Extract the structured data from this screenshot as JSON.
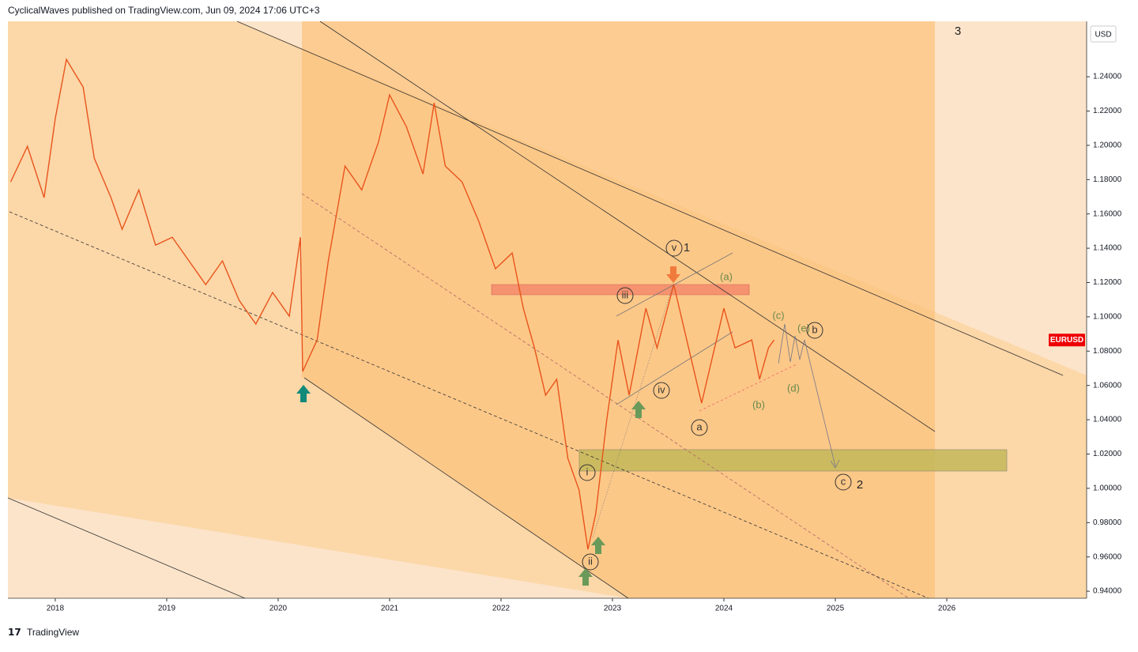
{
  "header": {
    "title": "CyclicalWaves published on TradingView.com, Jun 09, 2024 17:06 UTC+3"
  },
  "footer": {
    "brand": "TradingView"
  },
  "chart_data": {
    "type": "line",
    "currency": "USD",
    "x": [
      2017.6,
      2017.75,
      2017.9,
      2018.0,
      2018.1,
      2018.25,
      2018.35,
      2018.5,
      2018.6,
      2018.75,
      2018.9,
      2019.05,
      2019.2,
      2019.35,
      2019.5,
      2019.65,
      2019.8,
      2019.95,
      2020.1,
      2020.2,
      2020.22,
      2020.35,
      2020.45,
      2020.6,
      2020.75,
      2020.9,
      2021.0,
      2021.15,
      2021.3,
      2021.4,
      2021.5,
      2021.65,
      2021.8,
      2021.95,
      2022.1,
      2022.2,
      2022.3,
      2022.4,
      2022.5,
      2022.6,
      2022.7,
      2022.78,
      2022.85,
      2022.95,
      2023.05,
      2023.15,
      2023.3,
      2023.4,
      2023.55,
      2023.7,
      2023.8,
      2023.95,
      2024.0,
      2024.1,
      2024.25,
      2024.32,
      2024.4,
      2024.45
    ],
    "series": [
      {
        "name": "EURUSD",
        "color": "#e8541c",
        "values": [
          1.1787,
          1.1994,
          1.1695,
          1.2156,
          1.2501,
          1.234,
          1.1925,
          1.1695,
          1.151,
          1.174,
          1.1418,
          1.1464,
          1.1326,
          1.1188,
          1.1326,
          1.1096,
          1.0958,
          1.1142,
          1.1004,
          1.1464,
          1.0681,
          1.0865,
          1.1326,
          1.1879,
          1.174,
          1.2018,
          1.2294,
          1.211,
          1.1833,
          1.2248,
          1.1879,
          1.1787,
          1.1557,
          1.128,
          1.1372,
          1.105,
          1.0819,
          1.0543,
          1.0636,
          1.0174,
          0.999,
          0.9644,
          0.9852,
          1.0405,
          1.0865,
          1.0543,
          1.105,
          1.0819,
          1.1188,
          1.0773,
          1.0497,
          1.0911,
          1.105,
          1.0819,
          1.0865,
          1.0636,
          1.0819,
          1.0865
        ]
      }
    ],
    "xlim": [
      2017.575,
      2027.255
    ],
    "xticks": [
      2018,
      2019,
      2020,
      2021,
      2022,
      2023,
      2024,
      2025,
      2026
    ],
    "ylim": [
      0.9359,
      1.2723
    ],
    "yticks": [
      {
        "value": 0.94,
        "label": "0.94000"
      },
      {
        "value": 0.96,
        "label": "0.96000"
      },
      {
        "value": 0.98,
        "label": "0.98000"
      },
      {
        "value": 1.0,
        "label": "1.00000"
      },
      {
        "value": 1.02,
        "label": "1.02000"
      },
      {
        "value": 1.04,
        "label": "1.04000"
      },
      {
        "value": 1.06,
        "label": "1.06000"
      },
      {
        "value": 1.08,
        "label": "1.08000"
      },
      {
        "value": 1.1,
        "label": "1.10000"
      },
      {
        "value": 1.12,
        "label": "1.12000"
      },
      {
        "value": 1.14,
        "label": "1.14000"
      },
      {
        "value": 1.16,
        "label": "1.16000"
      },
      {
        "value": 1.18,
        "label": "1.18000"
      },
      {
        "value": 1.2,
        "label": "1.20000"
      },
      {
        "value": 1.22,
        "label": "1.22000"
      },
      {
        "value": 1.24,
        "label": "1.24000"
      }
    ],
    "annotations": [
      "3",
      "v",
      "1",
      "iii",
      "(a)",
      "(c)",
      "(e)",
      "b",
      "iv",
      "(d)",
      "(b)",
      "a",
      "i",
      "ii",
      "c",
      "2"
    ]
  }
}
